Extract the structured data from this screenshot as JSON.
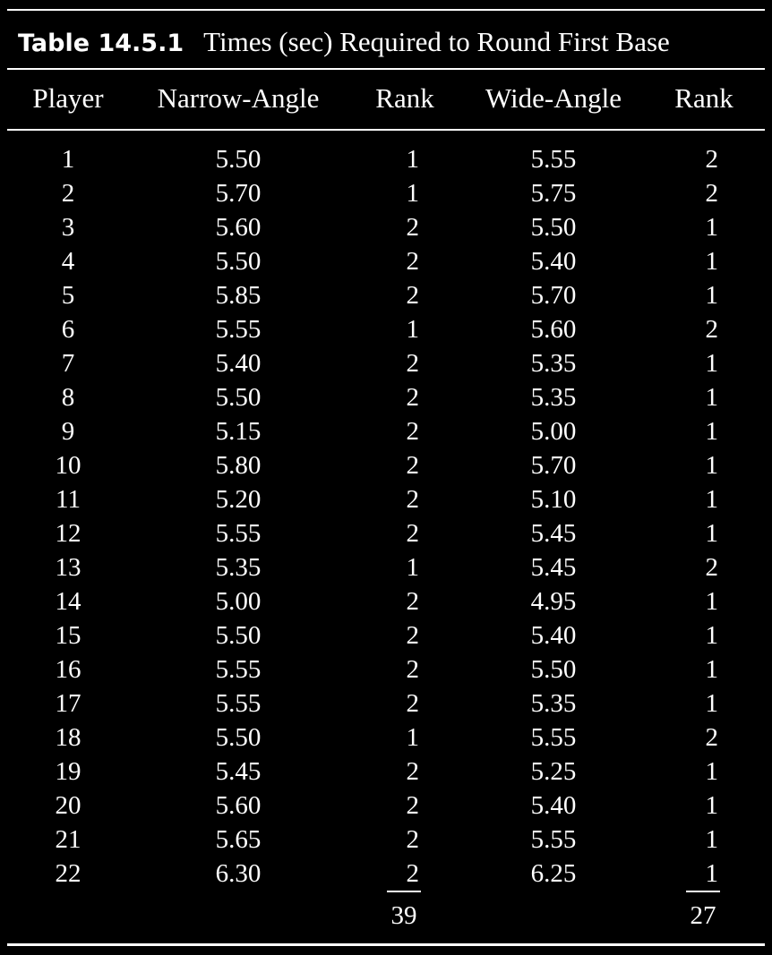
{
  "table": {
    "number": "Table 14.5.1",
    "title": "Times (sec) Required to Round First Base",
    "headers": [
      "Player",
      "Narrow-Angle",
      "Rank",
      "Wide-Angle",
      "Rank"
    ],
    "rows": [
      [
        "1",
        "5.50",
        "1",
        "5.55",
        "2"
      ],
      [
        "2",
        "5.70",
        "1",
        "5.75",
        "2"
      ],
      [
        "3",
        "5.60",
        "2",
        "5.50",
        "1"
      ],
      [
        "4",
        "5.50",
        "2",
        "5.40",
        "1"
      ],
      [
        "5",
        "5.85",
        "2",
        "5.70",
        "1"
      ],
      [
        "6",
        "5.55",
        "1",
        "5.60",
        "2"
      ],
      [
        "7",
        "5.40",
        "2",
        "5.35",
        "1"
      ],
      [
        "8",
        "5.50",
        "2",
        "5.35",
        "1"
      ],
      [
        "9",
        "5.15",
        "2",
        "5.00",
        "1"
      ],
      [
        "10",
        "5.80",
        "2",
        "5.70",
        "1"
      ],
      [
        "11",
        "5.20",
        "2",
        "5.10",
        "1"
      ],
      [
        "12",
        "5.55",
        "2",
        "5.45",
        "1"
      ],
      [
        "13",
        "5.35",
        "1",
        "5.45",
        "2"
      ],
      [
        "14",
        "5.00",
        "2",
        "4.95",
        "1"
      ],
      [
        "15",
        "5.50",
        "2",
        "5.40",
        "1"
      ],
      [
        "16",
        "5.55",
        "2",
        "5.50",
        "1"
      ],
      [
        "17",
        "5.55",
        "2",
        "5.35",
        "1"
      ],
      [
        "18",
        "5.50",
        "1",
        "5.55",
        "2"
      ],
      [
        "19",
        "5.45",
        "2",
        "5.25",
        "1"
      ],
      [
        "20",
        "5.60",
        "2",
        "5.40",
        "1"
      ],
      [
        "21",
        "5.65",
        "2",
        "5.55",
        "1"
      ],
      [
        "22",
        "6.30",
        "2",
        "6.25",
        "1"
      ]
    ],
    "totals": {
      "narrow_rank_sum": "39",
      "wide_rank_sum": "27"
    }
  },
  "colors": {
    "background": "#000000",
    "text": "#ffffff"
  }
}
